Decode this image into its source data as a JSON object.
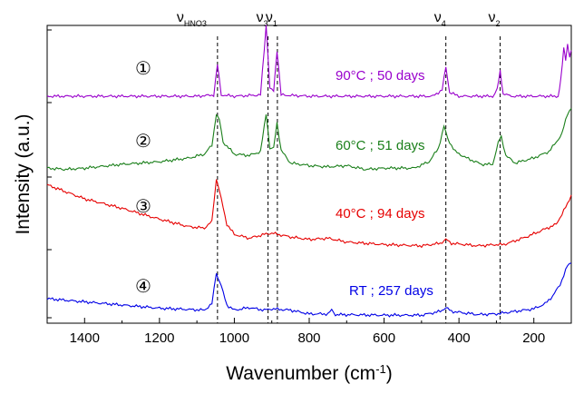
{
  "chart_data": {
    "type": "line",
    "xlabel": "Wavenumber (cm",
    "xlabel_sup": "-1",
    "xlabel_close": ")",
    "ylabel": "Intensity (a.u.)",
    "xlim": [
      1500,
      100
    ],
    "x_reversed": true,
    "y_ticks_labeled": false,
    "xticks": [
      1400,
      1200,
      1000,
      800,
      600,
      400,
      200
    ],
    "bands": [
      {
        "label": "ν",
        "sub": "HNO3",
        "x": 1045
      },
      {
        "label": "ν",
        "sub": "3",
        "x": 910
      },
      {
        "label": "ν",
        "sub": "1",
        "x": 885
      },
      {
        "label": "ν",
        "sub": "4",
        "x": 435
      },
      {
        "label": "ν",
        "sub": "2",
        "x": 290
      }
    ],
    "series": [
      {
        "name": "90°C ; 50 days",
        "marker": "①",
        "color": "#9900cc",
        "offset": 3,
        "points": [
          [
            1500,
            0.1
          ],
          [
            1300,
            0.1
          ],
          [
            1100,
            0.1
          ],
          [
            1055,
            0.12
          ],
          [
            1045,
            0.6
          ],
          [
            1035,
            0.12
          ],
          [
            1000,
            0.1
          ],
          [
            930,
            0.12
          ],
          [
            915,
            1.22
          ],
          [
            905,
            0.22
          ],
          [
            895,
            0.18
          ],
          [
            886,
            0.82
          ],
          [
            875,
            0.12
          ],
          [
            800,
            0.1
          ],
          [
            600,
            0.1
          ],
          [
            470,
            0.1
          ],
          [
            445,
            0.2
          ],
          [
            435,
            0.56
          ],
          [
            425,
            0.16
          ],
          [
            400,
            0.1
          ],
          [
            310,
            0.1
          ],
          [
            298,
            0.2
          ],
          [
            290,
            0.5
          ],
          [
            282,
            0.14
          ],
          [
            260,
            0.1
          ],
          [
            150,
            0.1
          ],
          [
            135,
            0.1
          ],
          [
            128,
            0.35
          ],
          [
            120,
            0.85
          ],
          [
            115,
            0.68
          ],
          [
            110,
            0.92
          ],
          [
            104,
            0.72
          ],
          [
            100,
            0.82
          ]
        ]
      },
      {
        "name": "60°C ; 51 days",
        "marker": "②",
        "color": "#1a7f1a",
        "offset": 2,
        "points": [
          [
            1500,
            0.14
          ],
          [
            1450,
            0.12
          ],
          [
            1400,
            0.14
          ],
          [
            1300,
            0.2
          ],
          [
            1200,
            0.24
          ],
          [
            1120,
            0.3
          ],
          [
            1080,
            0.36
          ],
          [
            1060,
            0.5
          ],
          [
            1048,
            0.98
          ],
          [
            1040,
            0.9
          ],
          [
            1030,
            0.55
          ],
          [
            1000,
            0.36
          ],
          [
            960,
            0.34
          ],
          [
            930,
            0.4
          ],
          [
            915,
            1.0
          ],
          [
            905,
            0.45
          ],
          [
            895,
            0.45
          ],
          [
            886,
            0.86
          ],
          [
            875,
            0.42
          ],
          [
            850,
            0.22
          ],
          [
            800,
            0.18
          ],
          [
            750,
            0.16
          ],
          [
            700,
            0.18
          ],
          [
            650,
            0.12
          ],
          [
            600,
            0.14
          ],
          [
            520,
            0.14
          ],
          [
            480,
            0.24
          ],
          [
            455,
            0.45
          ],
          [
            440,
            0.8
          ],
          [
            430,
            0.6
          ],
          [
            410,
            0.4
          ],
          [
            380,
            0.3
          ],
          [
            340,
            0.2
          ],
          [
            310,
            0.2
          ],
          [
            295,
            0.54
          ],
          [
            287,
            0.64
          ],
          [
            275,
            0.34
          ],
          [
            250,
            0.22
          ],
          [
            200,
            0.3
          ],
          [
            160,
            0.4
          ],
          [
            140,
            0.55
          ],
          [
            125,
            0.68
          ],
          [
            110,
            1.0
          ],
          [
            100,
            1.08
          ]
        ]
      },
      {
        "name": "40°C ; 94 days",
        "marker": "③",
        "color": "#e60000",
        "offset": 1,
        "points": [
          [
            1500,
            1.02
          ],
          [
            1400,
            0.8
          ],
          [
            1300,
            0.65
          ],
          [
            1200,
            0.48
          ],
          [
            1120,
            0.36
          ],
          [
            1080,
            0.34
          ],
          [
            1060,
            0.44
          ],
          [
            1048,
            1.12
          ],
          [
            1035,
            0.8
          ],
          [
            1020,
            0.4
          ],
          [
            1000,
            0.24
          ],
          [
            960,
            0.18
          ],
          [
            920,
            0.24
          ],
          [
            900,
            0.26
          ],
          [
            850,
            0.2
          ],
          [
            800,
            0.16
          ],
          [
            750,
            0.18
          ],
          [
            700,
            0.12
          ],
          [
            600,
            0.08
          ],
          [
            500,
            0.06
          ],
          [
            450,
            0.1
          ],
          [
            435,
            0.16
          ],
          [
            420,
            0.1
          ],
          [
            350,
            0.06
          ],
          [
            300,
            0.08
          ],
          [
            280,
            0.08
          ],
          [
            220,
            0.2
          ],
          [
            180,
            0.3
          ],
          [
            140,
            0.4
          ],
          [
            110,
            0.72
          ],
          [
            100,
            0.86
          ]
        ]
      },
      {
        "name": "RT ; 257 days",
        "marker": "④",
        "color": "#0000e6",
        "offset": 0,
        "points": [
          [
            1500,
            0.3
          ],
          [
            1400,
            0.25
          ],
          [
            1300,
            0.2
          ],
          [
            1200,
            0.15
          ],
          [
            1120,
            0.13
          ],
          [
            1080,
            0.12
          ],
          [
            1060,
            0.22
          ],
          [
            1048,
            0.7
          ],
          [
            1035,
            0.5
          ],
          [
            1020,
            0.2
          ],
          [
            1000,
            0.12
          ],
          [
            960,
            0.16
          ],
          [
            920,
            0.12
          ],
          [
            900,
            0.14
          ],
          [
            850,
            0.12
          ],
          [
            800,
            0.06
          ],
          [
            750,
            0.06
          ],
          [
            740,
            0.12
          ],
          [
            730,
            0.05
          ],
          [
            600,
            0.04
          ],
          [
            500,
            0.04
          ],
          [
            450,
            0.1
          ],
          [
            435,
            0.16
          ],
          [
            420,
            0.1
          ],
          [
            350,
            0.05
          ],
          [
            300,
            0.06
          ],
          [
            250,
            0.1
          ],
          [
            200,
            0.14
          ],
          [
            170,
            0.22
          ],
          [
            150,
            0.34
          ],
          [
            130,
            0.52
          ],
          [
            110,
            0.82
          ],
          [
            100,
            0.86
          ]
        ]
      }
    ]
  }
}
